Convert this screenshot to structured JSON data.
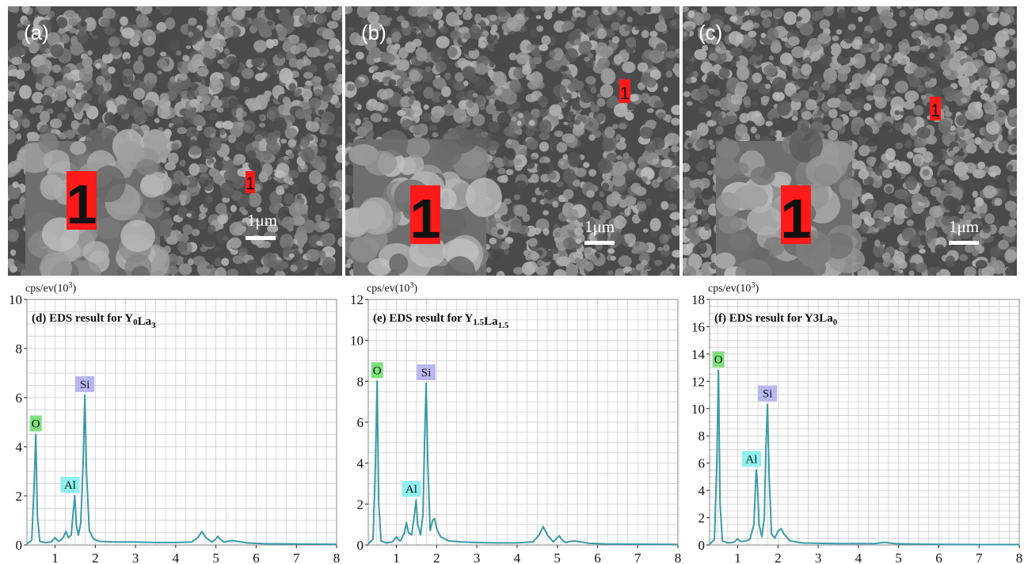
{
  "figure": {
    "sem_panels": [
      {
        "label": "(a)",
        "marker": "1",
        "scale": "1μm"
      },
      {
        "label": "(b)",
        "marker": "1",
        "scale": "1μm"
      },
      {
        "label": "(c)",
        "marker": "1",
        "scale": "1μm"
      }
    ]
  },
  "colors": {
    "line": "#3a9aa8",
    "grid": "#c8c8c8",
    "marker_bg": "#ff1a1a",
    "O_box": "#7fe07f",
    "Al_box": "#8ff0f0",
    "Si_box": "#b8b8f0"
  },
  "chart_data": [
    {
      "type": "line",
      "title_main": "(d) EDS result for Y",
      "title_parts": [
        {
          "t": "(d) EDS result for Y"
        },
        {
          "t": "0",
          "sub": true
        },
        {
          "t": "La"
        },
        {
          "t": "3",
          "sub": true
        }
      ],
      "ylabel": "cps/ev(10",
      "ylabel_sup": "3",
      "ylabel_end": ")",
      "xlim": [
        0.3,
        8
      ],
      "ylim": [
        0,
        10
      ],
      "y_ticks": [
        "0",
        "2",
        "4",
        "6",
        "8",
        "10"
      ],
      "x_ticks": [
        "1",
        "2",
        "3",
        "4",
        "5",
        "6",
        "7",
        "8"
      ],
      "series": [
        {
          "x": [
            0.3,
            0.42,
            0.48,
            0.52,
            0.56,
            0.62,
            0.75,
            0.9,
            1.0,
            1.05,
            1.1,
            1.2,
            1.27,
            1.33,
            1.4,
            1.46,
            1.49,
            1.53,
            1.58,
            1.64,
            1.7,
            1.74,
            1.78,
            1.85,
            1.95,
            2.1,
            2.5,
            3.0,
            3.5,
            4.0,
            4.4,
            4.55,
            4.65,
            4.75,
            4.9,
            5.0,
            5.05,
            5.1,
            5.2,
            5.4,
            5.8,
            6.2,
            7.0,
            8.0
          ],
          "y": [
            0.05,
            0.2,
            2.5,
            4.5,
            1.2,
            0.15,
            0.1,
            0.12,
            0.3,
            0.2,
            0.15,
            0.3,
            0.55,
            0.3,
            0.4,
            1.5,
            2.0,
            0.8,
            0.4,
            0.9,
            3.5,
            6.1,
            3.0,
            0.6,
            0.25,
            0.15,
            0.12,
            0.12,
            0.1,
            0.1,
            0.12,
            0.3,
            0.55,
            0.3,
            0.12,
            0.25,
            0.35,
            0.25,
            0.12,
            0.18,
            0.08,
            0.05,
            0.04,
            0.03
          ]
        }
      ],
      "peaks": [
        {
          "label": "O",
          "x": 0.52,
          "y": 4.5
        },
        {
          "label": "Al",
          "x": 1.49,
          "y": 2.0
        },
        {
          "label": "Si",
          "x": 1.74,
          "y": 6.1
        }
      ]
    },
    {
      "type": "line",
      "title_parts": [
        {
          "t": "(e) EDS result for Y"
        },
        {
          "t": "1.5",
          "sub": true
        },
        {
          "t": "La"
        },
        {
          "t": "1.5",
          "sub": true
        }
      ],
      "ylabel": "cps/ev(10",
      "ylabel_sup": "3",
      "ylabel_end": ")",
      "xlim": [
        0.3,
        8
      ],
      "ylim": [
        0,
        12
      ],
      "y_ticks": [
        "0",
        "2",
        "4",
        "6",
        "8",
        "10",
        "12"
      ],
      "x_ticks": [
        "1",
        "2",
        "3",
        "4",
        "5",
        "6",
        "7",
        "8"
      ],
      "series": [
        {
          "x": [
            0.3,
            0.42,
            0.48,
            0.52,
            0.56,
            0.62,
            0.75,
            0.9,
            1.0,
            1.05,
            1.1,
            1.2,
            1.25,
            1.3,
            1.38,
            1.45,
            1.49,
            1.53,
            1.6,
            1.66,
            1.7,
            1.74,
            1.78,
            1.84,
            1.9,
            1.95,
            2.0,
            2.1,
            2.3,
            2.6,
            3.0,
            3.5,
            4.0,
            4.4,
            4.55,
            4.65,
            4.75,
            4.9,
            5.0,
            5.05,
            5.1,
            5.2,
            5.4,
            5.8,
            6.2,
            7.0,
            8.0
          ],
          "y": [
            0.05,
            0.3,
            4.0,
            8.0,
            2.0,
            0.2,
            0.1,
            0.15,
            0.4,
            0.25,
            0.2,
            0.6,
            1.1,
            0.6,
            0.5,
            1.5,
            2.2,
            1.0,
            0.5,
            1.5,
            5.0,
            7.9,
            4.0,
            0.7,
            1.2,
            1.3,
            0.8,
            0.4,
            0.2,
            0.15,
            0.12,
            0.1,
            0.1,
            0.15,
            0.5,
            0.9,
            0.5,
            0.15,
            0.35,
            0.45,
            0.3,
            0.12,
            0.2,
            0.08,
            0.05,
            0.04,
            0.03
          ]
        }
      ],
      "peaks": [
        {
          "label": "O",
          "x": 0.52,
          "y": 8.0
        },
        {
          "label": "Al",
          "x": 1.49,
          "y": 2.2
        },
        {
          "label": "Si",
          "x": 1.74,
          "y": 7.9
        }
      ]
    },
    {
      "type": "line",
      "title_parts": [
        {
          "t": "(f) EDS result for Y3La"
        },
        {
          "t": "0",
          "sub": true
        }
      ],
      "ylabel": "cps/ev(10",
      "ylabel_sup": "3",
      "ylabel_end": ")",
      "xlim": [
        0.3,
        8
      ],
      "ylim": [
        0,
        18
      ],
      "y_ticks": [
        "0",
        "2",
        "4",
        "6",
        "8",
        "10",
        "12",
        "14",
        "16",
        "18"
      ],
      "x_ticks": [
        "1",
        "2",
        "3",
        "4",
        "5",
        "6",
        "7",
        "8"
      ],
      "series": [
        {
          "x": [
            0.3,
            0.42,
            0.48,
            0.52,
            0.56,
            0.62,
            0.75,
            0.9,
            1.0,
            1.05,
            1.1,
            1.2,
            1.3,
            1.4,
            1.46,
            1.49,
            1.53,
            1.6,
            1.66,
            1.7,
            1.74,
            1.78,
            1.84,
            1.92,
            2.0,
            2.08,
            2.15,
            2.3,
            2.6,
            3.0,
            3.5,
            4.0,
            4.4,
            4.65,
            4.9,
            5.2,
            5.8,
            6.2,
            7.0,
            8.0
          ],
          "y": [
            0.05,
            0.4,
            6.0,
            12.8,
            3.0,
            0.3,
            0.15,
            0.2,
            0.45,
            0.3,
            0.25,
            0.3,
            0.4,
            1.5,
            5.5,
            4.5,
            1.5,
            0.6,
            2.0,
            7.0,
            10.3,
            5.0,
            0.8,
            0.5,
            1.0,
            1.2,
            0.8,
            0.3,
            0.15,
            0.12,
            0.1,
            0.1,
            0.1,
            0.2,
            0.1,
            0.08,
            0.05,
            0.04,
            0.03,
            0.03
          ]
        }
      ],
      "peaks": [
        {
          "label": "O",
          "x": 0.52,
          "y": 12.8
        },
        {
          "label": "Al",
          "x": 1.46,
          "y": 5.5
        },
        {
          "label": "Si",
          "x": 1.74,
          "y": 10.3
        }
      ]
    }
  ]
}
